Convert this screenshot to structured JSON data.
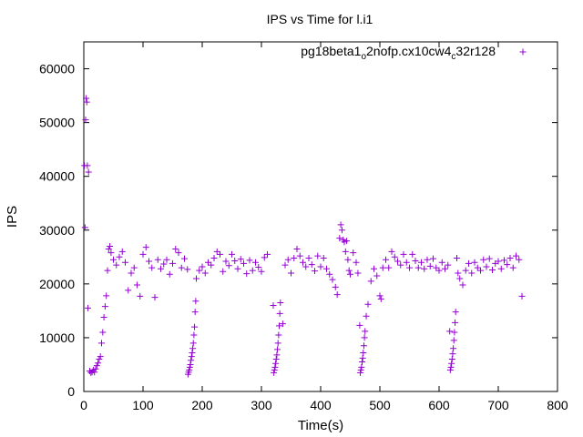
{
  "chart_data": {
    "type": "scatter",
    "title": "IPS vs Time for l.i1",
    "xlabel": "Time(s)",
    "ylabel": "IPS",
    "xlim": [
      0,
      800
    ],
    "ylim": [
      0,
      65000
    ],
    "xticks": [
      0,
      100,
      200,
      300,
      400,
      500,
      600,
      700,
      800
    ],
    "yticks": [
      0,
      10000,
      20000,
      30000,
      40000,
      50000,
      60000
    ],
    "grid": false,
    "legend_position": "top-right",
    "series": [
      {
        "name": "pg18beta1o2nofp.cx10cw4c32r128",
        "name_main": "pg18beta1",
        "name_sub1": "o",
        "name_mid": "2nofp.cx10cw4",
        "name_sub2": "c",
        "name_end": "32r128",
        "color": "#9400d3",
        "marker": "plus",
        "points": [
          [
            1,
            42000
          ],
          [
            2,
            30500
          ],
          [
            3,
            50500
          ],
          [
            4,
            54500
          ],
          [
            5,
            53800
          ],
          [
            6,
            42000
          ],
          [
            7,
            15500
          ],
          [
            8,
            40800
          ],
          [
            10,
            3800
          ],
          [
            12,
            3500
          ],
          [
            14,
            3600
          ],
          [
            16,
            4000
          ],
          [
            18,
            3600
          ],
          [
            20,
            4200
          ],
          [
            22,
            4800
          ],
          [
            24,
            5300
          ],
          [
            26,
            6000
          ],
          [
            28,
            6500
          ],
          [
            30,
            9000
          ],
          [
            32,
            11000
          ],
          [
            34,
            13800
          ],
          [
            36,
            15800
          ],
          [
            38,
            17800
          ],
          [
            40,
            22500
          ],
          [
            42,
            26500
          ],
          [
            44,
            27000
          ],
          [
            46,
            25800
          ],
          [
            50,
            24500
          ],
          [
            55,
            23500
          ],
          [
            60,
            25000
          ],
          [
            65,
            26000
          ],
          [
            70,
            24000
          ],
          [
            75,
            18800
          ],
          [
            80,
            22000
          ],
          [
            85,
            23000
          ],
          [
            90,
            19800
          ],
          [
            95,
            17700
          ],
          [
            100,
            25500
          ],
          [
            105,
            26800
          ],
          [
            110,
            24200
          ],
          [
            115,
            23000
          ],
          [
            120,
            17500
          ],
          [
            125,
            24500
          ],
          [
            130,
            22800
          ],
          [
            135,
            23700
          ],
          [
            140,
            24500
          ],
          [
            145,
            21800
          ],
          [
            150,
            23800
          ],
          [
            155,
            26500
          ],
          [
            160,
            25800
          ],
          [
            165,
            23000
          ],
          [
            170,
            24700
          ],
          [
            175,
            22700
          ],
          [
            176,
            3200
          ],
          [
            177,
            3600
          ],
          [
            178,
            4000
          ],
          [
            179,
            4500
          ],
          [
            180,
            5000
          ],
          [
            181,
            5800
          ],
          [
            182,
            6500
          ],
          [
            183,
            7200
          ],
          [
            184,
            8000
          ],
          [
            185,
            9000
          ],
          [
            186,
            10500
          ],
          [
            187,
            12000
          ],
          [
            188,
            14800
          ],
          [
            189,
            16800
          ],
          [
            190,
            21000
          ],
          [
            195,
            22500
          ],
          [
            200,
            23200
          ],
          [
            205,
            22000
          ],
          [
            210,
            24000
          ],
          [
            215,
            23500
          ],
          [
            220,
            24800
          ],
          [
            225,
            26000
          ],
          [
            230,
            25500
          ],
          [
            235,
            22300
          ],
          [
            240,
            24200
          ],
          [
            245,
            23400
          ],
          [
            250,
            25500
          ],
          [
            255,
            24300
          ],
          [
            260,
            22800
          ],
          [
            265,
            24600
          ],
          [
            270,
            23800
          ],
          [
            275,
            21900
          ],
          [
            280,
            24400
          ],
          [
            285,
            22500
          ],
          [
            290,
            24000
          ],
          [
            295,
            23100
          ],
          [
            300,
            22300
          ],
          [
            305,
            24900
          ],
          [
            310,
            25500
          ],
          [
            321,
            3500
          ],
          [
            322,
            4000
          ],
          [
            323,
            4500
          ],
          [
            324,
            5200
          ],
          [
            325,
            6000
          ],
          [
            326,
            6800
          ],
          [
            327,
            7800
          ],
          [
            328,
            9000
          ],
          [
            329,
            10500
          ],
          [
            330,
            12200
          ],
          [
            331,
            14500
          ],
          [
            332,
            16500
          ],
          [
            320,
            16000
          ],
          [
            336,
            12600
          ],
          [
            340,
            23500
          ],
          [
            345,
            24500
          ],
          [
            350,
            22000
          ],
          [
            355,
            24800
          ],
          [
            360,
            26500
          ],
          [
            365,
            25200
          ],
          [
            370,
            24000
          ],
          [
            375,
            23200
          ],
          [
            380,
            24800
          ],
          [
            385,
            23600
          ],
          [
            390,
            22400
          ],
          [
            395,
            25200
          ],
          [
            400,
            23200
          ],
          [
            405,
            24800
          ],
          [
            410,
            22800
          ],
          [
            415,
            21800
          ],
          [
            420,
            20800
          ],
          [
            425,
            19400
          ],
          [
            428,
            18000
          ],
          [
            432,
            28500
          ],
          [
            434,
            31000
          ],
          [
            436,
            30000
          ],
          [
            438,
            28200
          ],
          [
            440,
            27800
          ],
          [
            442,
            26000
          ],
          [
            444,
            28000
          ],
          [
            446,
            24500
          ],
          [
            448,
            22500
          ],
          [
            450,
            21800
          ],
          [
            455,
            25800
          ],
          [
            460,
            24000
          ],
          [
            463,
            22000
          ],
          [
            467,
            3500
          ],
          [
            468,
            4000
          ],
          [
            469,
            4500
          ],
          [
            470,
            5500
          ],
          [
            471,
            6200
          ],
          [
            472,
            7200
          ],
          [
            473,
            8500
          ],
          [
            474,
            10000
          ],
          [
            475,
            11200
          ],
          [
            477,
            14000
          ],
          [
            466,
            12300
          ],
          [
            480,
            16200
          ],
          [
            485,
            20500
          ],
          [
            490,
            22800
          ],
          [
            495,
            21500
          ],
          [
            500,
            17800
          ],
          [
            502,
            17200
          ],
          [
            505,
            23000
          ],
          [
            510,
            24500
          ],
          [
            515,
            23000
          ],
          [
            520,
            26000
          ],
          [
            525,
            25000
          ],
          [
            530,
            24200
          ],
          [
            535,
            23500
          ],
          [
            540,
            25500
          ],
          [
            545,
            24000
          ],
          [
            550,
            23000
          ],
          [
            555,
            25500
          ],
          [
            560,
            24300
          ],
          [
            565,
            23000
          ],
          [
            570,
            24000
          ],
          [
            575,
            22800
          ],
          [
            580,
            24500
          ],
          [
            585,
            23300
          ],
          [
            590,
            24700
          ],
          [
            595,
            23000
          ],
          [
            600,
            22500
          ],
          [
            605,
            24000
          ],
          [
            610,
            22800
          ],
          [
            615,
            23500
          ],
          [
            619,
            4000
          ],
          [
            620,
            4500
          ],
          [
            621,
            5200
          ],
          [
            622,
            6000
          ],
          [
            623,
            7000
          ],
          [
            624,
            8000
          ],
          [
            625,
            9500
          ],
          [
            626,
            11000
          ],
          [
            627,
            12800
          ],
          [
            628,
            14800
          ],
          [
            618,
            11200
          ],
          [
            630,
            24800
          ],
          [
            632,
            22000
          ],
          [
            635,
            21000
          ],
          [
            640,
            19800
          ],
          [
            645,
            22500
          ],
          [
            650,
            23800
          ],
          [
            655,
            22000
          ],
          [
            660,
            24000
          ],
          [
            665,
            23000
          ],
          [
            670,
            22500
          ],
          [
            675,
            24500
          ],
          [
            680,
            23200
          ],
          [
            685,
            24700
          ],
          [
            690,
            22600
          ],
          [
            695,
            23800
          ],
          [
            700,
            24200
          ],
          [
            705,
            22800
          ],
          [
            710,
            24400
          ],
          [
            715,
            23600
          ],
          [
            720,
            24800
          ],
          [
            725,
            23000
          ],
          [
            730,
            25200
          ],
          [
            735,
            24500
          ],
          [
            740,
            17700
          ]
        ]
      }
    ]
  }
}
